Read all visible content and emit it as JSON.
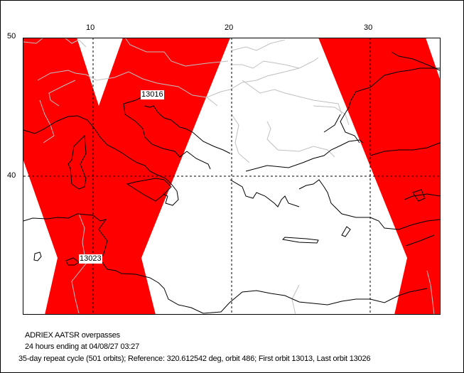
{
  "map": {
    "x_ticks": [
      "10",
      "20",
      "30"
    ],
    "y_ticks": [
      "50",
      "40"
    ],
    "swath_color": "#ff0000",
    "orbit_labels": [
      "13016",
      "13023"
    ],
    "grid": "dashed"
  },
  "caption": {
    "line1": "ADRIEX AATSR overpasses",
    "line2": "24 hours ending at 04/08/27 03:27",
    "line3": "35-day repeat cycle (501 orbits); Reference: 320.612542 deg, orbit 486; First orbit 13013, Last orbit 13026"
  }
}
